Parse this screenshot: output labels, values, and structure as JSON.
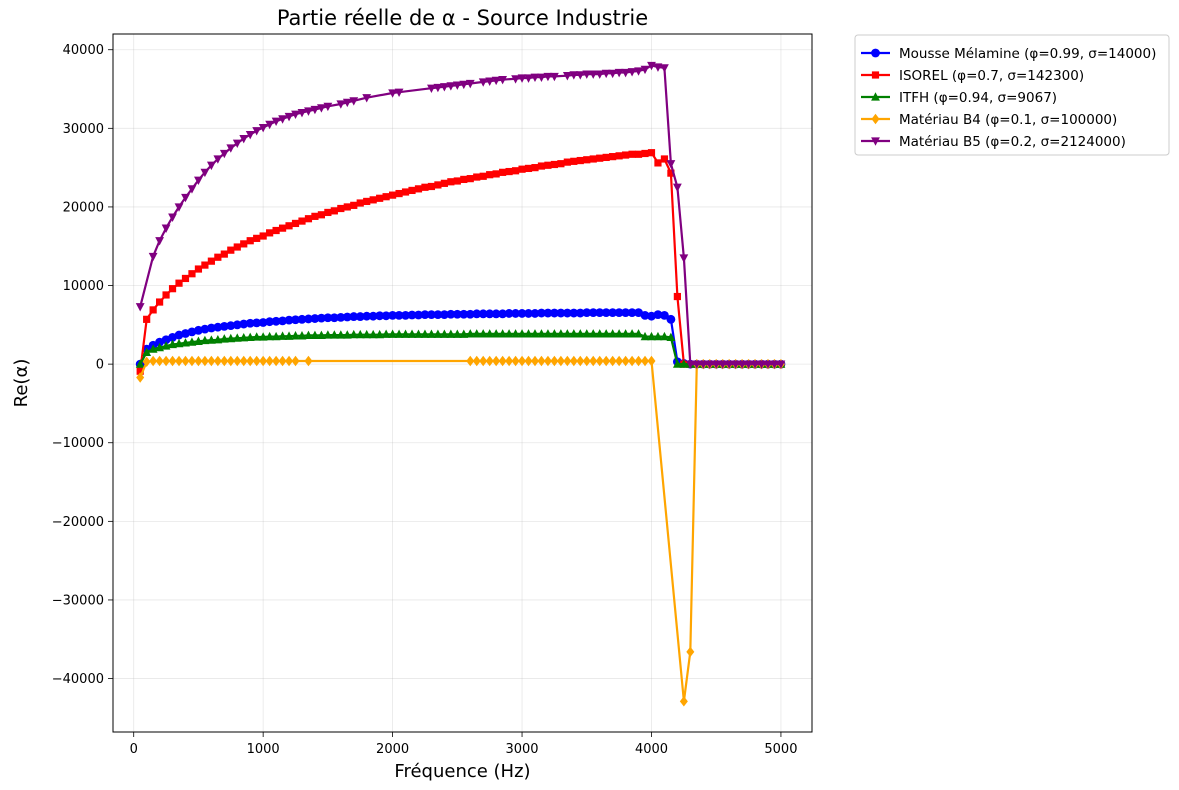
{
  "chart_data": {
    "type": "line",
    "title": "Partie réelle de α - Source Industrie",
    "xlabel": "Fréquence (Hz)",
    "ylabel": "Re(α)",
    "xlim": [
      -160,
      5240
    ],
    "ylim": [
      -46800,
      42000
    ],
    "xticks": [
      0,
      1000,
      2000,
      3000,
      4000,
      5000
    ],
    "xtick_labels": [
      "0",
      "1000",
      "2000",
      "3000",
      "4000",
      "5000"
    ],
    "yticks": [
      -40000,
      -30000,
      -20000,
      -10000,
      0,
      10000,
      20000,
      30000,
      40000
    ],
    "ytick_labels": [
      "−40000",
      "−30000",
      "−20000",
      "−10000",
      "0",
      "10000",
      "20000",
      "30000",
      "40000"
    ],
    "grid": true,
    "legend_position": "outside top-right",
    "series": [
      {
        "name": "Mousse Mélamine (φ=0.99, σ=14000)",
        "color": "#0000ff",
        "marker": "circle",
        "x": [
          50,
          100,
          150,
          200,
          250,
          300,
          350,
          400,
          450,
          500,
          550,
          600,
          650,
          700,
          750,
          800,
          850,
          900,
          950,
          1000,
          1050,
          1100,
          1150,
          1200,
          1250,
          1300,
          1350,
          1400,
          1450,
          1500,
          1550,
          1600,
          1650,
          1700,
          1750,
          1800,
          1850,
          1900,
          1950,
          2000,
          2050,
          2100,
          2150,
          2200,
          2250,
          2300,
          2350,
          2400,
          2450,
          2500,
          2550,
          2600,
          2650,
          2700,
          2750,
          2800,
          2850,
          2900,
          2950,
          3000,
          3050,
          3100,
          3150,
          3200,
          3250,
          3300,
          3350,
          3400,
          3450,
          3500,
          3550,
          3600,
          3650,
          3700,
          3750,
          3800,
          3850,
          3900,
          3950,
          4000,
          4050,
          4100,
          4150,
          4200,
          4250,
          4300,
          4350,
          4400,
          4450,
          4500,
          4550,
          4600,
          4650,
          4700,
          4750,
          4800,
          4850,
          4900,
          4950,
          5000
        ],
        "y": [
          0,
          1900,
          2400,
          2800,
          3100,
          3400,
          3700,
          3900,
          4100,
          4300,
          4450,
          4600,
          4700,
          4800,
          4900,
          5000,
          5100,
          5200,
          5250,
          5300,
          5400,
          5450,
          5500,
          5600,
          5650,
          5700,
          5750,
          5800,
          5850,
          5900,
          5900,
          5950,
          6000,
          6050,
          6050,
          6100,
          6100,
          6150,
          6150,
          6200,
          6200,
          6200,
          6250,
          6250,
          6300,
          6300,
          6300,
          6300,
          6350,
          6350,
          6350,
          6350,
          6400,
          6400,
          6400,
          6400,
          6400,
          6450,
          6450,
          6450,
          6450,
          6450,
          6500,
          6500,
          6500,
          6500,
          6500,
          6500,
          6500,
          6550,
          6550,
          6550,
          6550,
          6550,
          6550,
          6550,
          6550,
          6550,
          6200,
          6100,
          6300,
          6200,
          5700,
          300,
          100,
          0,
          0,
          0,
          0,
          0,
          0,
          0,
          0,
          0,
          0,
          0,
          0,
          0,
          0,
          0
        ]
      },
      {
        "name": "ISOREL (φ=0.7, σ=142300)",
        "color": "#ff0000",
        "marker": "square",
        "x": [
          50,
          100,
          150,
          200,
          250,
          300,
          350,
          400,
          450,
          500,
          550,
          600,
          650,
          700,
          750,
          800,
          850,
          900,
          950,
          1000,
          1050,
          1100,
          1150,
          1200,
          1250,
          1300,
          1350,
          1400,
          1450,
          1500,
          1550,
          1600,
          1650,
          1700,
          1750,
          1800,
          1850,
          1900,
          1950,
          2000,
          2050,
          2100,
          2150,
          2200,
          2250,
          2300,
          2350,
          2400,
          2450,
          2500,
          2550,
          2600,
          2650,
          2700,
          2750,
          2800,
          2850,
          2900,
          2950,
          3000,
          3050,
          3100,
          3150,
          3200,
          3250,
          3300,
          3350,
          3400,
          3450,
          3500,
          3550,
          3600,
          3650,
          3700,
          3750,
          3800,
          3850,
          3900,
          3950,
          4000,
          4050,
          4100,
          4150,
          4200,
          4250,
          4300,
          4350,
          4400,
          4450,
          4500,
          4550,
          4600,
          4650,
          4700,
          4750,
          4800,
          4850,
          4900,
          4950,
          5000
        ],
        "y": [
          -900,
          5700,
          6900,
          7900,
          8800,
          9600,
          10300,
          10900,
          11500,
          12100,
          12600,
          13100,
          13600,
          14000,
          14500,
          14900,
          15300,
          15700,
          16000,
          16300,
          16700,
          17000,
          17300,
          17600,
          17900,
          18200,
          18500,
          18800,
          19000,
          19300,
          19500,
          19800,
          20000,
          20200,
          20500,
          20700,
          20900,
          21100,
          21300,
          21500,
          21700,
          21900,
          22100,
          22300,
          22500,
          22600,
          22800,
          23000,
          23200,
          23300,
          23500,
          23600,
          23800,
          23900,
          24100,
          24200,
          24400,
          24500,
          24600,
          24800,
          24900,
          25000,
          25200,
          25300,
          25400,
          25500,
          25700,
          25800,
          25900,
          26000,
          26100,
          26200,
          26300,
          26400,
          26500,
          26600,
          26700,
          26700,
          26800,
          26900,
          25600,
          26100,
          24300,
          8600,
          0,
          0,
          0,
          0,
          0,
          0,
          0,
          0,
          0,
          0,
          0,
          0,
          0,
          0,
          0,
          0
        ]
      },
      {
        "name": "ITFH (φ=0.94, σ=9067)",
        "color": "#008000",
        "marker": "triangle-up",
        "x": [
          50,
          100,
          150,
          200,
          250,
          300,
          350,
          400,
          450,
          500,
          550,
          600,
          650,
          700,
          750,
          800,
          850,
          900,
          950,
          1000,
          1050,
          1100,
          1150,
          1200,
          1250,
          1300,
          1350,
          1400,
          1450,
          1500,
          1550,
          1600,
          1650,
          1700,
          1750,
          1800,
          1850,
          1900,
          1950,
          2000,
          2050,
          2100,
          2150,
          2200,
          2250,
          2300,
          2350,
          2400,
          2450,
          2500,
          2550,
          2600,
          2650,
          2700,
          2750,
          2800,
          2850,
          2900,
          2950,
          3000,
          3050,
          3100,
          3150,
          3200,
          3250,
          3300,
          3350,
          3400,
          3450,
          3500,
          3550,
          3600,
          3650,
          3700,
          3750,
          3800,
          3850,
          3900,
          3950,
          4000,
          4050,
          4100,
          4150,
          4200,
          4250,
          4300,
          4350,
          4400,
          4450,
          4500,
          4550,
          4600,
          4650,
          4700,
          4750,
          4800,
          4850,
          4900,
          4950,
          5000
        ],
        "y": [
          0,
          1500,
          1900,
          2100,
          2300,
          2500,
          2600,
          2700,
          2800,
          2900,
          3000,
          3050,
          3100,
          3200,
          3250,
          3300,
          3350,
          3400,
          3450,
          3450,
          3500,
          3500,
          3550,
          3550,
          3600,
          3600,
          3650,
          3650,
          3650,
          3700,
          3700,
          3700,
          3700,
          3750,
          3750,
          3750,
          3750,
          3750,
          3800,
          3800,
          3800,
          3800,
          3800,
          3800,
          3800,
          3800,
          3800,
          3800,
          3800,
          3800,
          3800,
          3850,
          3850,
          3850,
          3850,
          3850,
          3850,
          3850,
          3850,
          3850,
          3850,
          3850,
          3850,
          3850,
          3850,
          3850,
          3850,
          3850,
          3850,
          3850,
          3850,
          3850,
          3850,
          3850,
          3850,
          3850,
          3850,
          3850,
          3500,
          3500,
          3500,
          3500,
          3400,
          0,
          0,
          0,
          0,
          0,
          0,
          0,
          0,
          0,
          0,
          0,
          0,
          0,
          0,
          0,
          0,
          0
        ]
      },
      {
        "name": "Matériau B4 (φ=0.1, σ=100000)",
        "color": "#ffa500",
        "marker": "diamond",
        "x": [
          50,
          100,
          150,
          200,
          250,
          300,
          350,
          400,
          450,
          500,
          550,
          600,
          650,
          700,
          750,
          800,
          850,
          900,
          950,
          1000,
          1050,
          1100,
          1150,
          1200,
          1250,
          1350,
          2600,
          2650,
          2700,
          2750,
          2800,
          2850,
          2900,
          2950,
          3000,
          3050,
          3100,
          3150,
          3200,
          3250,
          3300,
          3350,
          3400,
          3450,
          3500,
          3550,
          3600,
          3650,
          3700,
          3750,
          3800,
          3850,
          3900,
          3950,
          4000,
          4250,
          4300,
          4350,
          4400,
          4450,
          4500,
          4550,
          4600,
          4650,
          4700,
          4750,
          4800,
          4850,
          4900,
          4950,
          5000
        ],
        "y": [
          -1700,
          300,
          400,
          400,
          400,
          400,
          400,
          400,
          400,
          400,
          400,
          400,
          400,
          400,
          400,
          400,
          400,
          400,
          400,
          400,
          400,
          400,
          400,
          400,
          400,
          400,
          400,
          400,
          400,
          400,
          400,
          400,
          400,
          400,
          400,
          400,
          400,
          400,
          400,
          400,
          400,
          400,
          400,
          400,
          400,
          400,
          400,
          400,
          400,
          400,
          400,
          400,
          400,
          400,
          400,
          -42900,
          -36600,
          0,
          0,
          0,
          0,
          0,
          0,
          0,
          0,
          0,
          0,
          0,
          0,
          0,
          0
        ]
      },
      {
        "name": "Matériau B5 (φ=0.2, σ=2124000)",
        "color": "#800080",
        "marker": "triangle-down",
        "x": [
          50,
          150,
          200,
          250,
          300,
          350,
          400,
          450,
          500,
          550,
          600,
          650,
          700,
          750,
          800,
          850,
          900,
          950,
          1000,
          1050,
          1100,
          1150,
          1200,
          1250,
          1300,
          1350,
          1400,
          1450,
          1500,
          1600,
          1650,
          1700,
          1800,
          2000,
          2050,
          2300,
          2350,
          2400,
          2450,
          2500,
          2550,
          2600,
          2700,
          2750,
          2800,
          2850,
          2950,
          3000,
          3050,
          3100,
          3150,
          3200,
          3250,
          3350,
          3400,
          3450,
          3500,
          3550,
          3600,
          3650,
          3700,
          3750,
          3800,
          3850,
          3900,
          3950,
          4000,
          4050,
          4100,
          4150,
          4200,
          4250,
          4300,
          4350,
          4400,
          4450,
          4500,
          4550,
          4600,
          4650,
          4700,
          4750,
          4800,
          4850,
          4900,
          4950,
          5000
        ],
        "y": [
          7300,
          13700,
          15700,
          17300,
          18700,
          20000,
          21200,
          22300,
          23400,
          24400,
          25300,
          26100,
          26800,
          27500,
          28100,
          28700,
          29200,
          29700,
          30100,
          30500,
          30900,
          31200,
          31500,
          31800,
          32000,
          32200,
          32400,
          32600,
          32800,
          33100,
          33300,
          33500,
          33900,
          34500,
          34600,
          35100,
          35200,
          35300,
          35400,
          35500,
          35600,
          35700,
          35900,
          36000,
          36100,
          36200,
          36300,
          36400,
          36400,
          36500,
          36500,
          36600,
          36600,
          36700,
          36800,
          36800,
          36900,
          36900,
          36900,
          37000,
          37000,
          37100,
          37100,
          37200,
          37300,
          37500,
          38000,
          37800,
          37700,
          25500,
          22500,
          13500,
          0,
          0,
          0,
          0,
          0,
          0,
          0,
          0,
          0,
          0,
          0,
          0,
          0,
          0,
          0
        ]
      }
    ]
  }
}
